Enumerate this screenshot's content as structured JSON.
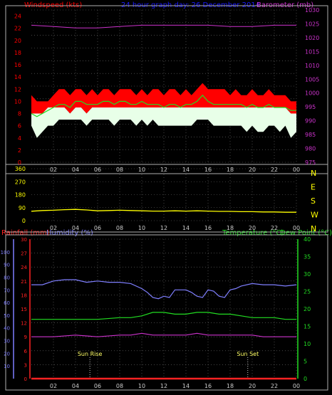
{
  "header": {
    "left_label": "Windspeed (kts)",
    "center_label": "24 hour graph day:  26 December 2014",
    "right_label": "Barometer (mb)"
  },
  "colors": {
    "wind": "#ff0000",
    "gust": "#ff0000",
    "avg": "#e8ffe8",
    "baro": "#cc33cc",
    "header_center": "#1a1aff",
    "dir": "#ffff00",
    "humidity": "#7f7fff",
    "temp": "#22dd22",
    "dew": "#22dd22",
    "rain": "#ff2222",
    "sun": "#ffff66",
    "grid": "#707070",
    "frame": "#b0b0b0"
  },
  "x_ticks": [
    "02",
    "04",
    "06",
    "08",
    "10",
    "12",
    "14",
    "16",
    "18",
    "20",
    "22",
    "00"
  ],
  "panel1": {
    "wind_ticks": [
      "0",
      "2",
      "4",
      "6",
      "8",
      "10",
      "12",
      "14",
      "16",
      "18",
      "20",
      "22",
      "24"
    ],
    "baro_ticks": [
      "975",
      "980",
      "985",
      "990",
      "995",
      "1000",
      "1005",
      "1010",
      "1015",
      "1020",
      "1025",
      "1030"
    ]
  },
  "panel2": {
    "dir_ticks": [
      "0",
      "90",
      "180",
      "270",
      "360"
    ],
    "compass": [
      "N",
      "W",
      "S",
      "E",
      "N"
    ]
  },
  "panel3": {
    "rain_label": "Rainfall (mm)",
    "hum_label": "Humidity (%)",
    "temp_label": "Temperature (°C)",
    "dew_label": "Dew Point (°C)",
    "rain_ticks": [
      "0",
      "3",
      "6",
      "9",
      "12",
      "15",
      "18",
      "21",
      "24",
      "27",
      "30"
    ],
    "hum_ticks": [
      "10",
      "20",
      "30",
      "40",
      "50",
      "60",
      "70",
      "80",
      "90",
      "100"
    ],
    "temp_ticks": [
      "0",
      "5",
      "10",
      "15",
      "20",
      "25",
      "30",
      "35",
      "40"
    ],
    "sunrise_label": "Sun Rise",
    "sunset_label": "Sun Set"
  },
  "chart_data": [
    {
      "type": "line",
      "x_unit": "hour of day (0-24)",
      "xlim": [
        0,
        24
      ],
      "ylim": [
        0,
        25
      ],
      "y2lim": [
        975,
        1030
      ],
      "series": [
        {
          "name": "Windspeed",
          "axis": "left",
          "x": [
            0,
            0.5,
            1,
            1.5,
            2,
            2.5,
            3,
            3.5,
            4,
            4.5,
            5,
            5.5,
            6,
            6.5,
            7,
            7.5,
            8,
            8.5,
            9,
            9.5,
            10,
            10.5,
            11,
            11.5,
            12,
            12.5,
            13,
            13.5,
            14,
            14.5,
            15,
            15.5,
            16,
            16.5,
            17,
            17.5,
            18,
            18.5,
            19,
            19.5,
            20,
            20.5,
            21,
            21.5,
            22,
            22.5,
            23,
            23.5,
            24
          ],
          "y": [
            11,
            10,
            10,
            10,
            11,
            12,
            12,
            11,
            12,
            12,
            11,
            12,
            11,
            12,
            12,
            11,
            12,
            12,
            12,
            11,
            12,
            11,
            12,
            12,
            11,
            12,
            12,
            11,
            12,
            11,
            12,
            13,
            12,
            12,
            12,
            12,
            11,
            12,
            11,
            11,
            12,
            11,
            11,
            12,
            11,
            11,
            11,
            10,
            10
          ]
        },
        {
          "name": "Windspeed min",
          "axis": "left",
          "x": [
            0,
            0.5,
            1,
            1.5,
            2,
            2.5,
            3,
            3.5,
            4,
            4.5,
            5,
            5.5,
            6,
            6.5,
            7,
            7.5,
            8,
            8.5,
            9,
            9.5,
            10,
            10.5,
            11,
            11.5,
            12,
            12.5,
            13,
            13.5,
            14,
            14.5,
            15,
            15.5,
            16,
            16.5,
            17,
            17.5,
            18,
            18.5,
            19,
            19.5,
            20,
            20.5,
            21,
            21.5,
            22,
            22.5,
            23,
            23.5,
            24
          ],
          "y": [
            8,
            8,
            8,
            9,
            9,
            9,
            9,
            8,
            9,
            9,
            8,
            9,
            9,
            9,
            9,
            9,
            9,
            9,
            9,
            9,
            9,
            9,
            9,
            9,
            9,
            9,
            9,
            9,
            9,
            9,
            9,
            9,
            9,
            9,
            9,
            9,
            9,
            9,
            9,
            9,
            9,
            9,
            9,
            9,
            9,
            9,
            9,
            8,
            8
          ]
        },
        {
          "name": "Average wind",
          "axis": "left",
          "x": [
            0,
            0.5,
            1,
            1.5,
            2,
            2.5,
            3,
            3.5,
            4,
            4.5,
            5,
            5.5,
            6,
            6.5,
            7,
            7.5,
            8,
            8.5,
            9,
            9.5,
            10,
            10.5,
            11,
            11.5,
            12,
            12.5,
            13,
            13.5,
            14,
            14.5,
            15,
            15.5,
            16,
            16.5,
            17,
            17.5,
            18,
            18.5,
            19,
            19.5,
            20,
            20.5,
            21,
            21.5,
            22,
            22.5,
            23,
            23.5,
            24
          ],
          "y": [
            8,
            7.5,
            8,
            8.5,
            9,
            9.5,
            9.5,
            9,
            10,
            10,
            9.5,
            9.5,
            9.5,
            10,
            10,
            9.5,
            10,
            10,
            9.5,
            9.5,
            10,
            9.5,
            9.5,
            9.5,
            9,
            9.5,
            9.5,
            9,
            9.5,
            9.5,
            10,
            11,
            10,
            9.5,
            9.5,
            9.5,
            9.5,
            9.5,
            9.5,
            9,
            9.5,
            9,
            9,
            9.5,
            9,
            9,
            9,
            8.5,
            8.5
          ]
        },
        {
          "name": "Gust envelope",
          "axis": "left",
          "x": [
            0,
            0.5,
            1,
            1.5,
            2,
            2.5,
            3,
            3.5,
            4,
            4.5,
            5,
            5.5,
            6,
            6.5,
            7,
            7.5,
            8,
            8.5,
            9,
            9.5,
            10,
            10.5,
            11,
            11.5,
            12,
            12.5,
            13,
            13.5,
            14,
            14.5,
            15,
            15.5,
            16,
            16.5,
            17,
            17.5,
            18,
            18.5,
            19,
            19.5,
            20,
            20.5,
            21,
            21.5,
            22,
            22.5,
            23,
            23.5,
            24
          ],
          "y": [
            6,
            4,
            5,
            6,
            6,
            7,
            7,
            7,
            7,
            7,
            6,
            7,
            7,
            7,
            7,
            6,
            7,
            7,
            7,
            6,
            7,
            6,
            7,
            6,
            6,
            6,
            6,
            6,
            6,
            6,
            7,
            7,
            7,
            6,
            6,
            6,
            6,
            6,
            6,
            5,
            6,
            5,
            5,
            6,
            6,
            5,
            6,
            4,
            5
          ]
        },
        {
          "name": "Barometer",
          "axis": "right",
          "x": [
            0,
            2,
            4,
            6,
            8,
            10,
            12,
            14,
            16,
            18,
            20,
            22,
            24
          ],
          "y": [
            1024.5,
            1024,
            1023.5,
            1023.5,
            1024,
            1024.5,
            1024.5,
            1024.5,
            1024.5,
            1024,
            1024,
            1024.5,
            1024.5
          ]
        }
      ]
    },
    {
      "type": "line",
      "x_unit": "hour of day (0-24)",
      "xlim": [
        0,
        24
      ],
      "ylim": [
        0,
        360
      ],
      "series": [
        {
          "name": "Wind direction",
          "x": [
            0,
            1,
            2,
            3,
            4,
            5,
            6,
            7,
            8,
            9,
            10,
            11,
            12,
            13,
            14,
            15,
            16,
            17,
            18,
            19,
            20,
            21,
            22,
            23,
            24
          ],
          "y": [
            65,
            70,
            72,
            76,
            78,
            74,
            68,
            70,
            72,
            70,
            68,
            66,
            66,
            68,
            66,
            68,
            66,
            64,
            64,
            62,
            62,
            60,
            60,
            58,
            58
          ]
        }
      ]
    },
    {
      "type": "line",
      "x_unit": "hour of day (0-24)",
      "xlim": [
        0,
        24
      ],
      "series": [
        {
          "name": "Humidity",
          "axis": "humidity",
          "x": [
            0,
            1,
            2,
            3,
            4,
            5,
            6,
            7,
            8,
            9,
            10,
            10.5,
            11,
            11.5,
            12,
            12.5,
            13,
            13.5,
            14,
            14.5,
            15,
            15.5,
            16,
            16.5,
            17,
            17.5,
            18,
            18.5,
            19,
            20,
            21,
            22,
            23,
            24
          ],
          "y": [
            74,
            74,
            77,
            78,
            78,
            76,
            77,
            76,
            76,
            75,
            71,
            68,
            64,
            63,
            65,
            64,
            70,
            70,
            70,
            68,
            65,
            64,
            70,
            69,
            65,
            64,
            70,
            71,
            73,
            75,
            74,
            74,
            73,
            74
          ]
        },
        {
          "name": "Temperature",
          "axis": "temp",
          "x": [
            0,
            2,
            4,
            6,
            8,
            9,
            10,
            11,
            12,
            13,
            14,
            15,
            16,
            17,
            18,
            19,
            20,
            21,
            22,
            23,
            24
          ],
          "y": [
            17,
            17,
            17,
            17,
            17.5,
            17.5,
            18,
            19,
            19,
            18.5,
            18.5,
            19,
            19,
            18.5,
            18.5,
            18,
            17.5,
            17.5,
            17.5,
            17,
            17
          ]
        },
        {
          "name": "Dew Point",
          "axis": "temp",
          "x": [
            0,
            2,
            4,
            6,
            8,
            9,
            10,
            11,
            12,
            13,
            14,
            15,
            16,
            17,
            18,
            19,
            20,
            21,
            22,
            23,
            24
          ],
          "y": [
            12,
            12,
            12.5,
            12,
            12.5,
            12.5,
            13,
            12.5,
            12.5,
            12.5,
            12.5,
            13,
            12.5,
            12.5,
            12.5,
            12.5,
            12.5,
            12,
            12,
            12,
            12
          ]
        },
        {
          "name": "Rainfall",
          "axis": "rain",
          "x": [
            0,
            24
          ],
          "y": [
            0,
            0
          ]
        }
      ]
    }
  ]
}
